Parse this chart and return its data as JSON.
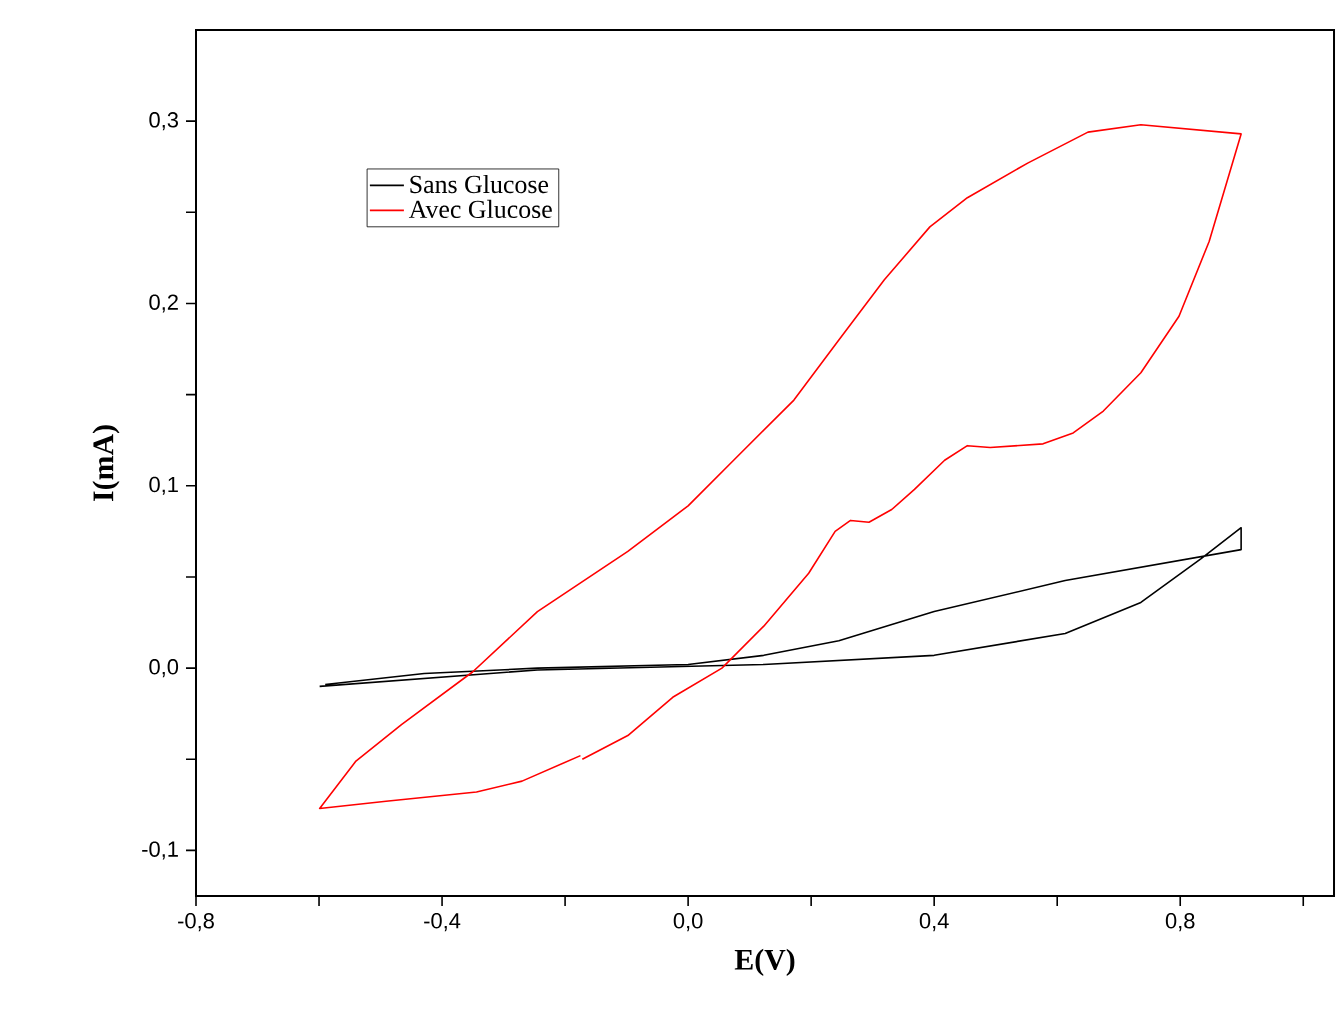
{
  "chart_data": {
    "type": "line",
    "xlabel": "E(V)",
    "ylabel": "I(mA)",
    "xlim": [
      -0.8,
      1.05
    ],
    "ylim": [
      -0.125,
      0.35
    ],
    "xticks": [
      {
        "value": -0.8,
        "label": "-0,8"
      },
      {
        "value": -0.6,
        "label": null
      },
      {
        "value": -0.4,
        "label": "-0,4"
      },
      {
        "value": -0.2,
        "label": null
      },
      {
        "value": 0.0,
        "label": "0,0"
      },
      {
        "value": 0.2,
        "label": null
      },
      {
        "value": 0.4,
        "label": "0,4"
      },
      {
        "value": 0.6,
        "label": null
      },
      {
        "value": 0.8,
        "label": "0,8"
      },
      {
        "value": 1.0,
        "label": null
      }
    ],
    "yticks": [
      {
        "value": -0.1,
        "label": "-0,1"
      },
      {
        "value": -0.05,
        "label": null
      },
      {
        "value": 0.0,
        "label": "0,0"
      },
      {
        "value": 0.05,
        "label": null
      },
      {
        "value": 0.1,
        "label": "0,1"
      },
      {
        "value": 0.15,
        "label": null
      },
      {
        "value": 0.2,
        "label": "0,2"
      },
      {
        "value": 0.25,
        "label": null
      },
      {
        "value": 0.3,
        "label": "0,3"
      }
    ],
    "legend": "top left",
    "marker": "none",
    "line_style": "solid",
    "series": [
      {
        "name": "Sans Glucose",
        "color": "#000000",
        "x": [
          -0.599,
          -0.245,
          0.123,
          0.4,
          0.613,
          0.736,
          0.834,
          0.899,
          0.899,
          0.613,
          0.4,
          0.245,
          0.123,
          0.0,
          -0.245,
          -0.429,
          -0.59
        ],
        "values": [
          -0.01,
          -0.001,
          0.002,
          0.007,
          0.019,
          0.036,
          0.06,
          0.077,
          0.065,
          0.048,
          0.031,
          0.015,
          0.007,
          0.002,
          0.0,
          -0.003,
          -0.009
        ]
      },
      {
        "name": "Avec Glucose",
        "color": "#ff0000",
        "x": [
          -0.172,
          -0.098,
          -0.025,
          0.055,
          0.123,
          0.196,
          0.239,
          0.264,
          0.294,
          0.331,
          0.368,
          0.417,
          0.454,
          0.491,
          0.577,
          0.626,
          0.675,
          0.736,
          0.798,
          0.847,
          0.899,
          0.736,
          0.65,
          0.552,
          0.454,
          0.393,
          0.319,
          0.245,
          0.172,
          0.074,
          0.0,
          -0.098,
          -0.245,
          -0.35,
          -0.466,
          -0.54,
          -0.599,
          -0.491,
          -0.344,
          -0.27,
          -0.175
        ],
        "values": [
          -0.05,
          -0.037,
          -0.016,
          0.0,
          0.023,
          0.052,
          0.075,
          0.081,
          0.08,
          0.087,
          0.098,
          0.114,
          0.122,
          0.121,
          0.123,
          0.129,
          0.141,
          0.162,
          0.193,
          0.234,
          0.293,
          0.298,
          0.294,
          0.277,
          0.258,
          0.242,
          0.213,
          0.18,
          0.147,
          0.114,
          0.089,
          0.064,
          0.031,
          -0.002,
          -0.031,
          -0.051,
          -0.077,
          -0.073,
          -0.068,
          -0.062,
          -0.048
        ]
      }
    ]
  }
}
